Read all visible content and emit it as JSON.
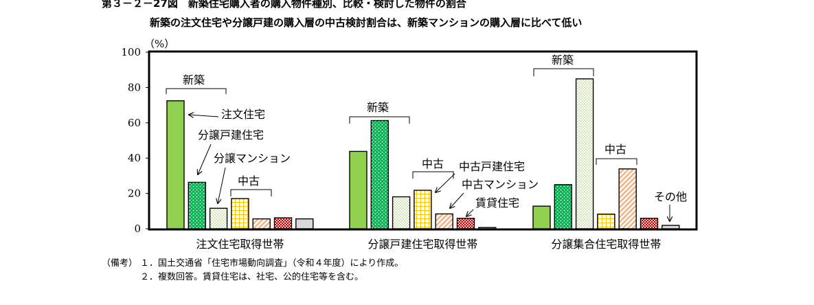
{
  "figure": {
    "title": "第３－２－27図　新築住宅購入者の購入物件種別、比較・検討した物件の割合",
    "subtitle": "新築の注文住宅や分譲戸建の購入層の中古検討割合は、新築マンションの購入層に比べて低い"
  },
  "chart_data": {
    "type": "bar",
    "ylabel": "（%）",
    "ylim": [
      0,
      100
    ],
    "yticks": [
      0,
      20,
      40,
      60,
      80,
      100
    ],
    "grid": false,
    "categories": [
      "注文住宅取得世帯",
      "分譲戸建住宅取得世帯",
      "分譲集合住宅取得世帯"
    ],
    "series": [
      {
        "name": "注文住宅",
        "values": [
          72.5,
          43.8,
          12.8
        ],
        "color": "#92d050"
      },
      {
        "name": "分譲戸建住宅",
        "values": [
          26.3,
          61.3,
          25.0
        ],
        "color": "#00b050"
      },
      {
        "name": "分譲マンション",
        "values": [
          11.6,
          18.1,
          84.9
        ],
        "color": "#ebf1de"
      },
      {
        "name": "中古戸建住宅",
        "values": [
          17.1,
          21.8,
          8.3
        ],
        "color": "#ffc000"
      },
      {
        "name": "中古マンション",
        "values": [
          5.6,
          8.4,
          33.9
        ],
        "color": "#f4b183"
      },
      {
        "name": "賃貸住宅",
        "values": [
          6.2,
          5.9,
          5.9
        ],
        "color": "#c00000"
      },
      {
        "name": "その他",
        "values": [
          5.6,
          0.7,
          1.9
        ],
        "color": "#d9d9d9"
      }
    ],
    "annotations": {
      "new": "新築",
      "used": "中古",
      "order_house": "注文住宅",
      "bunjo_house": "分譲戸建住宅",
      "bunjo_mansion": "分譲マンション",
      "used_house": "中古戸建住宅",
      "used_mansion": "中古マンション",
      "rental": "賃貸住宅",
      "other": "その他"
    }
  },
  "notes": {
    "label": "（備考）",
    "items": [
      "１．国土交通省「住宅市場動向調査」（令和４年度）により作成。",
      "２．複数回答。賃貸住宅は、社宅、公的住宅等を含む。"
    ]
  }
}
